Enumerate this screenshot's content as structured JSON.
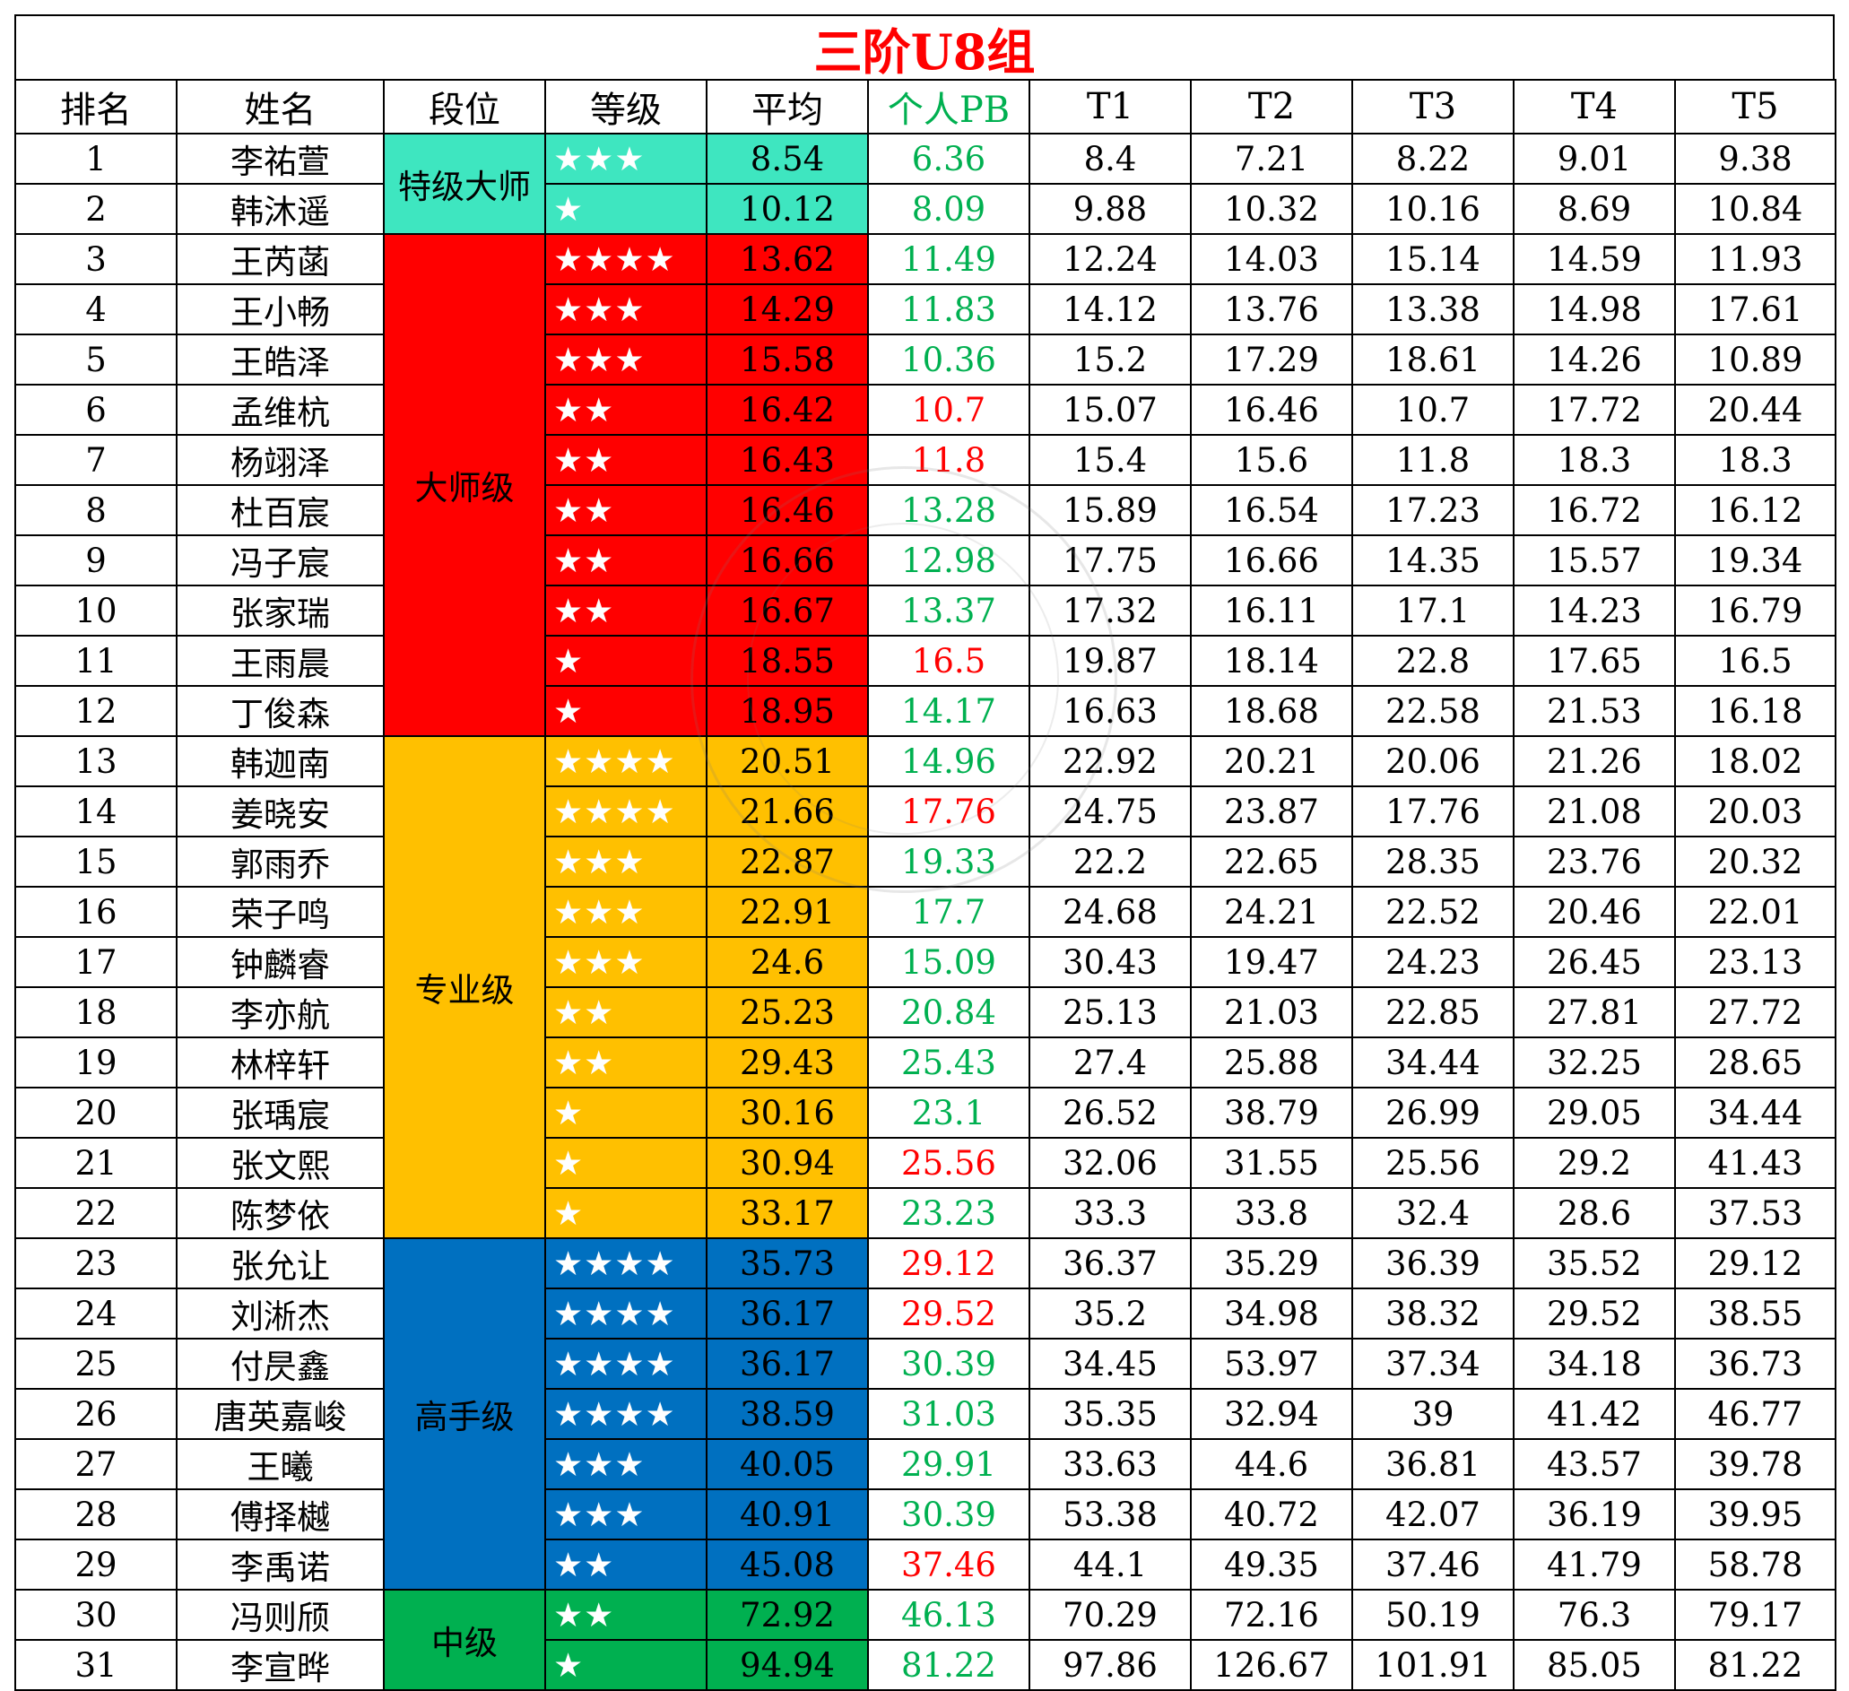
{
  "title": "三阶U8组",
  "headers": [
    "排名",
    "姓名",
    "段位",
    "等级",
    "平均",
    "个人PB",
    "T1",
    "T2",
    "T3",
    "T4",
    "T5"
  ],
  "colors": {
    "grandmaster": "#3ee6c0",
    "master": "#ff0000",
    "professional": "#ffc000",
    "expert": "#0070c0",
    "intermediate": "#00b050",
    "pb_green": "#00b050",
    "pb_red": "#ff0000"
  },
  "tiers": [
    {
      "label": "特级大师",
      "start": 0,
      "span": 2,
      "color": "#3ee6c0"
    },
    {
      "label": "大师级",
      "start": 2,
      "span": 10,
      "color": "#ff0000"
    },
    {
      "label": "专业级",
      "start": 12,
      "span": 10,
      "color": "#ffc000"
    },
    {
      "label": "高手级",
      "start": 22,
      "span": 7,
      "color": "#0070c0"
    },
    {
      "label": "中级",
      "start": 29,
      "span": 2,
      "color": "#00b050"
    }
  ],
  "rows": [
    {
      "rank": "1",
      "name": "李祐萱",
      "stars": "★★★",
      "avg": "8.54",
      "pb": "6.36",
      "pb_red": false,
      "t": [
        "8.4",
        "7.21",
        "8.22",
        "9.01",
        "9.38"
      ]
    },
    {
      "rank": "2",
      "name": "韩沐遥",
      "stars": "★",
      "avg": "10.12",
      "pb": "8.09",
      "pb_red": false,
      "t": [
        "9.88",
        "10.32",
        "10.16",
        "8.69",
        "10.84"
      ]
    },
    {
      "rank": "3",
      "name": "王芮菡",
      "stars": "★★★★",
      "avg": "13.62",
      "pb": "11.49",
      "pb_red": false,
      "t": [
        "12.24",
        "14.03",
        "15.14",
        "14.59",
        "11.93"
      ]
    },
    {
      "rank": "4",
      "name": "王小畅",
      "stars": "★★★",
      "avg": "14.29",
      "pb": "11.83",
      "pb_red": false,
      "t": [
        "14.12",
        "13.76",
        "13.38",
        "14.98",
        "17.61"
      ]
    },
    {
      "rank": "5",
      "name": "王皓泽",
      "stars": "★★★",
      "avg": "15.58",
      "pb": "10.36",
      "pb_red": false,
      "t": [
        "15.2",
        "17.29",
        "18.61",
        "14.26",
        "10.89"
      ]
    },
    {
      "rank": "6",
      "name": "孟维杭",
      "stars": "★★",
      "avg": "16.42",
      "pb": "10.7",
      "pb_red": true,
      "t": [
        "15.07",
        "16.46",
        "10.7",
        "17.72",
        "20.44"
      ]
    },
    {
      "rank": "7",
      "name": "杨翊泽",
      "stars": "★★",
      "avg": "16.43",
      "pb": "11.8",
      "pb_red": true,
      "t": [
        "15.4",
        "15.6",
        "11.8",
        "18.3",
        "18.3"
      ]
    },
    {
      "rank": "8",
      "name": "杜百宸",
      "stars": "★★",
      "avg": "16.46",
      "pb": "13.28",
      "pb_red": false,
      "t": [
        "15.89",
        "16.54",
        "17.23",
        "16.72",
        "16.12"
      ]
    },
    {
      "rank": "9",
      "name": "冯子宸",
      "stars": "★★",
      "avg": "16.66",
      "pb": "12.98",
      "pb_red": false,
      "t": [
        "17.75",
        "16.66",
        "14.35",
        "15.57",
        "19.34"
      ]
    },
    {
      "rank": "10",
      "name": "张家瑞",
      "stars": "★★",
      "avg": "16.67",
      "pb": "13.37",
      "pb_red": false,
      "t": [
        "17.32",
        "16.11",
        "17.1",
        "14.23",
        "16.79"
      ]
    },
    {
      "rank": "11",
      "name": "王雨晨",
      "stars": "★",
      "avg": "18.55",
      "pb": "16.5",
      "pb_red": true,
      "t": [
        "19.87",
        "18.14",
        "22.8",
        "17.65",
        "16.5"
      ]
    },
    {
      "rank": "12",
      "name": "丁俊森",
      "stars": "★",
      "avg": "18.95",
      "pb": "14.17",
      "pb_red": false,
      "t": [
        "16.63",
        "18.68",
        "22.58",
        "21.53",
        "16.18"
      ]
    },
    {
      "rank": "13",
      "name": "韩迦南",
      "stars": "★★★★",
      "avg": "20.51",
      "pb": "14.96",
      "pb_red": false,
      "t": [
        "22.92",
        "20.21",
        "20.06",
        "21.26",
        "18.02"
      ]
    },
    {
      "rank": "14",
      "name": "姜晓安",
      "stars": "★★★★",
      "avg": "21.66",
      "pb": "17.76",
      "pb_red": true,
      "t": [
        "24.75",
        "23.87",
        "17.76",
        "21.08",
        "20.03"
      ]
    },
    {
      "rank": "15",
      "name": "郭雨乔",
      "stars": "★★★",
      "avg": "22.87",
      "pb": "19.33",
      "pb_red": false,
      "t": [
        "22.2",
        "22.65",
        "28.35",
        "23.76",
        "20.32"
      ]
    },
    {
      "rank": "16",
      "name": "荣子鸣",
      "stars": "★★★",
      "avg": "22.91",
      "pb": "17.7",
      "pb_red": false,
      "t": [
        "24.68",
        "24.21",
        "22.52",
        "20.46",
        "22.01"
      ]
    },
    {
      "rank": "17",
      "name": "钟麟睿",
      "stars": "★★★",
      "avg": "24.6",
      "pb": "15.09",
      "pb_red": false,
      "t": [
        "30.43",
        "19.47",
        "24.23",
        "26.45",
        "23.13"
      ]
    },
    {
      "rank": "18",
      "name": "李亦航",
      "stars": "★★",
      "avg": "25.23",
      "pb": "20.84",
      "pb_red": false,
      "t": [
        "25.13",
        "21.03",
        "22.85",
        "27.81",
        "27.72"
      ]
    },
    {
      "rank": "19",
      "name": "林梓轩",
      "stars": "★★",
      "avg": "29.43",
      "pb": "25.43",
      "pb_red": false,
      "t": [
        "27.4",
        "25.88",
        "34.44",
        "32.25",
        "28.65"
      ]
    },
    {
      "rank": "20",
      "name": "张瑀宸",
      "stars": "★",
      "avg": "30.16",
      "pb": "23.1",
      "pb_red": false,
      "t": [
        "26.52",
        "38.79",
        "26.99",
        "29.05",
        "34.44"
      ]
    },
    {
      "rank": "21",
      "name": "张文熙",
      "stars": "★",
      "avg": "30.94",
      "pb": "25.56",
      "pb_red": true,
      "t": [
        "32.06",
        "31.55",
        "25.56",
        "29.2",
        "41.43"
      ]
    },
    {
      "rank": "22",
      "name": "陈梦依",
      "stars": "★",
      "avg": "33.17",
      "pb": "23.23",
      "pb_red": false,
      "t": [
        "33.3",
        "33.8",
        "32.4",
        "28.6",
        "37.53"
      ]
    },
    {
      "rank": "23",
      "name": "张允让",
      "stars": "★★★★",
      "avg": "35.73",
      "pb": "29.12",
      "pb_red": true,
      "t": [
        "36.37",
        "35.29",
        "36.39",
        "35.52",
        "29.12"
      ]
    },
    {
      "rank": "24",
      "name": "刘淅杰",
      "stars": "★★★★",
      "avg": "36.17",
      "pb": "29.52",
      "pb_red": true,
      "t": [
        "35.2",
        "34.98",
        "38.32",
        "29.52",
        "38.55"
      ]
    },
    {
      "rank": "25",
      "name": "付昃鑫",
      "stars": "★★★★",
      "avg": "36.17",
      "pb": "30.39",
      "pb_red": false,
      "t": [
        "34.45",
        "53.97",
        "37.34",
        "34.18",
        "36.73"
      ]
    },
    {
      "rank": "26",
      "name": "唐英嘉峻",
      "stars": "★★★★",
      "avg": "38.59",
      "pb": "31.03",
      "pb_red": false,
      "t": [
        "35.35",
        "32.94",
        "39",
        "41.42",
        "46.77"
      ]
    },
    {
      "rank": "27",
      "name": "王曦",
      "stars": "★★★",
      "avg": "40.05",
      "pb": "29.91",
      "pb_red": false,
      "t": [
        "33.63",
        "44.6",
        "36.81",
        "43.57",
        "39.78"
      ]
    },
    {
      "rank": "28",
      "name": "傅择樾",
      "stars": "★★★",
      "avg": "40.91",
      "pb": "30.39",
      "pb_red": false,
      "t": [
        "53.38",
        "40.72",
        "42.07",
        "36.19",
        "39.95"
      ]
    },
    {
      "rank": "29",
      "name": "李禹诺",
      "stars": "★★",
      "avg": "45.08",
      "pb": "37.46",
      "pb_red": true,
      "t": [
        "44.1",
        "49.35",
        "37.46",
        "41.79",
        "58.78"
      ]
    },
    {
      "rank": "30",
      "name": "冯则颀",
      "stars": "★★",
      "avg": "72.92",
      "pb": "46.13",
      "pb_red": false,
      "t": [
        "70.29",
        "72.16",
        "50.19",
        "76.3",
        "79.17"
      ]
    },
    {
      "rank": "31",
      "name": "李宣晔",
      "stars": "★",
      "avg": "94.94",
      "pb": "81.22",
      "pb_red": false,
      "t": [
        "97.86",
        "126.67",
        "101.91",
        "85.05",
        "81.22"
      ]
    }
  ]
}
